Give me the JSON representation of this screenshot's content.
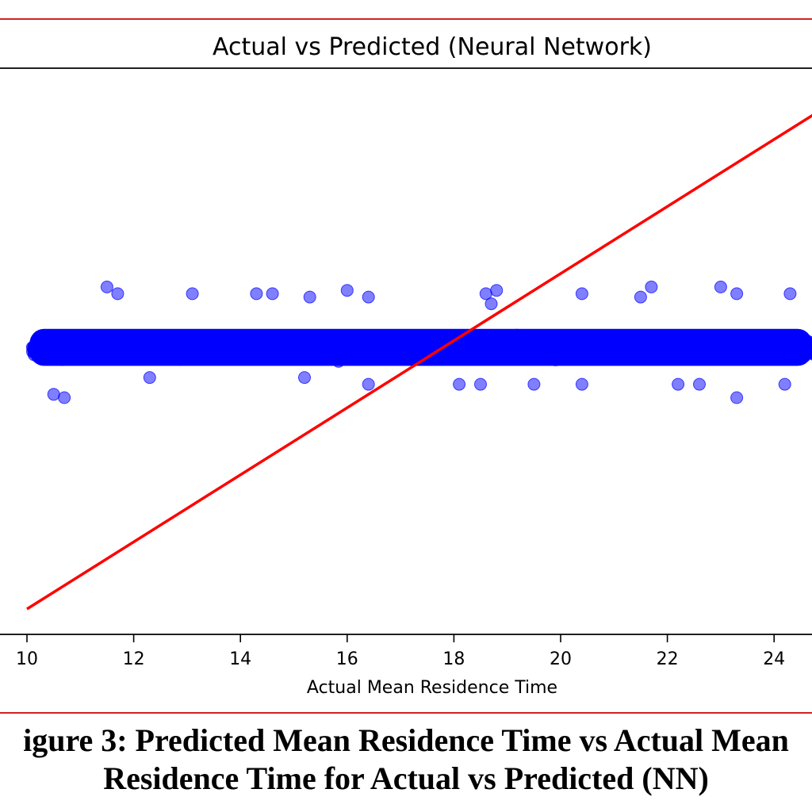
{
  "caption": {
    "line1": "igure 3: Predicted Mean Residence Time vs Actual Mean",
    "line2": "Residence Time for Actual vs Predicted (NN)"
  },
  "colors": {
    "frame": "#d62020",
    "points": "#0000ff",
    "ideal_line": "#ff0000",
    "axes": "#000000"
  },
  "chart_data": {
    "type": "scatter",
    "title": "Actual vs Predicted (Neural Network)",
    "xlabel": "Actual Mean Residence Time",
    "ylabel": "",
    "xlim": [
      10,
      25.0
    ],
    "x_ticks": [
      "10",
      "12",
      "14",
      "16",
      "18",
      "20",
      "22",
      "24"
    ],
    "grid": false,
    "series": [
      {
        "description_free": true,
        "points_style": "dense cloud",
        "predicted_center": 17.8,
        "predicted_band": [
          16.9,
          18.7
        ],
        "outliers": [
          [
            10.5,
            16.4
          ],
          [
            10.7,
            16.3
          ],
          [
            11.5,
            19.6
          ],
          [
            11.7,
            19.4
          ],
          [
            13.1,
            19.4
          ],
          [
            14.3,
            19.4
          ],
          [
            14.6,
            19.4
          ],
          [
            15.3,
            19.3
          ],
          [
            16.0,
            19.5
          ],
          [
            16.4,
            19.3
          ],
          [
            18.8,
            19.5
          ],
          [
            18.6,
            19.4
          ],
          [
            18.7,
            19.1
          ],
          [
            20.4,
            19.4
          ],
          [
            21.7,
            19.6
          ],
          [
            21.5,
            19.3
          ],
          [
            23.0,
            19.6
          ],
          [
            23.3,
            19.4
          ],
          [
            24.3,
            19.4
          ],
          [
            16.4,
            16.7
          ],
          [
            18.1,
            16.7
          ],
          [
            18.5,
            16.7
          ],
          [
            19.5,
            16.7
          ],
          [
            20.4,
            16.7
          ],
          [
            22.2,
            16.7
          ],
          [
            22.6,
            16.7
          ],
          [
            23.3,
            16.3
          ],
          [
            24.2,
            16.7
          ],
          [
            15.2,
            16.9
          ],
          [
            12.3,
            16.9
          ]
        ]
      }
    ],
    "reference_line": {
      "from": [
        10,
        10
      ],
      "to": [
        25.0,
        25.0
      ]
    }
  }
}
